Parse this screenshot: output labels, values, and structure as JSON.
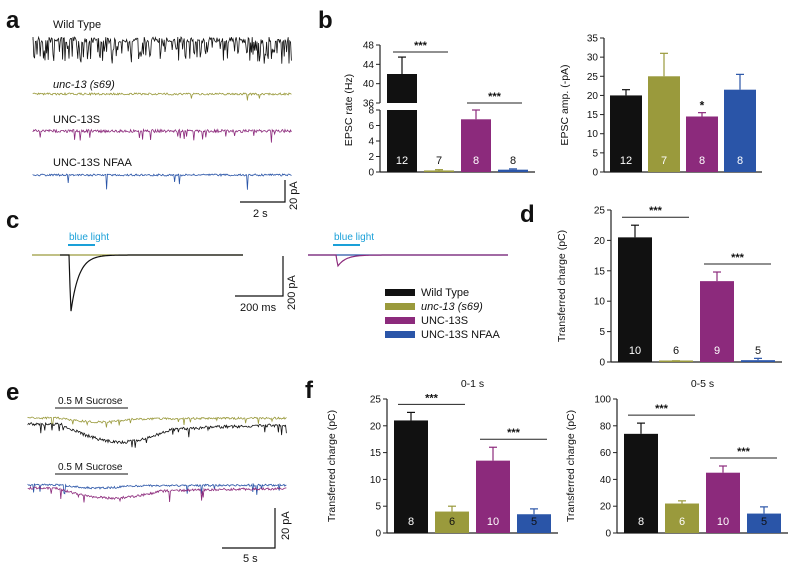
{
  "panels": {
    "a": "a",
    "b": "b",
    "c": "c",
    "d": "d",
    "e": "e",
    "f": "f"
  },
  "colors": {
    "wt": "#111111",
    "unc13": "#9a9a3c",
    "unc13s": "#8c2a7c",
    "nfaa": "#2a55a8",
    "light": "#1aa0d8",
    "axis": "#222222"
  },
  "traces": {
    "a": {
      "labels": [
        "Wild Type",
        "unc-13 (s69)",
        "UNC-13S",
        "UNC-13S NFAA"
      ],
      "scale_time": "2 s",
      "scale_current": "20 pA"
    },
    "c": {
      "stim_label": "blue light",
      "scale_time": "200 ms",
      "scale_current": "200 pA"
    },
    "e": {
      "stim_label": "0.5 M Sucrose",
      "scale_time": "5 s",
      "scale_current": "20 pA"
    }
  },
  "legend": {
    "items": [
      {
        "label": "Wild Type",
        "color": "#111111",
        "italic": false
      },
      {
        "label": "unc-13 (s69)",
        "color": "#9a9a3c",
        "italic": true
      },
      {
        "label": "UNC-13S",
        "color": "#8c2a7c",
        "italic": false
      },
      {
        "label": "UNC-13S NFAA",
        "color": "#2a55a8",
        "italic": false
      }
    ]
  },
  "chart_data": [
    {
      "id": "b-rate",
      "panel": "b",
      "type": "bar",
      "title": "",
      "ylabel": "EPSC rate (Hz)",
      "categories": [
        "Wild Type",
        "unc-13 (s69)",
        "UNC-13S",
        "UNC-13S NFAA"
      ],
      "values": [
        42,
        0.2,
        6.8,
        0.3
      ],
      "errors": [
        3.5,
        0.1,
        1.2,
        0.1
      ],
      "n": [
        "12",
        "7",
        "8",
        "8"
      ],
      "axis_break": {
        "low": [
          0,
          8
        ],
        "high": [
          36,
          48
        ]
      },
      "ticks_low": [
        "0",
        "2",
        "4",
        "6",
        "8"
      ],
      "ticks_high": [
        "36",
        "40",
        "44",
        "48"
      ],
      "sig": [
        {
          "from": 0,
          "to": 1,
          "label": "***"
        },
        {
          "from": 2,
          "to": 3,
          "label": "***"
        }
      ]
    },
    {
      "id": "b-amp",
      "panel": "b",
      "type": "bar",
      "title": "",
      "ylabel": "EPSC amp. (-pA)",
      "categories": [
        "Wild Type",
        "unc-13 (s69)",
        "UNC-13S",
        "UNC-13S NFAA"
      ],
      "values": [
        20,
        25,
        14.5,
        21.5
      ],
      "errors": [
        1.5,
        6,
        1,
        4
      ],
      "n": [
        "12",
        "7",
        "8",
        "8"
      ],
      "ylim": [
        0,
        35
      ],
      "ticks": [
        "0",
        "5",
        "10",
        "15",
        "20",
        "25",
        "30",
        "35"
      ],
      "stars": [
        {
          "index": 2,
          "label": "*"
        }
      ]
    },
    {
      "id": "d",
      "panel": "d",
      "type": "bar",
      "title": "",
      "ylabel": "Transferred charge (pC)",
      "categories": [
        "Wild Type",
        "unc-13 (s69)",
        "UNC-13S",
        "UNC-13S NFAA"
      ],
      "values": [
        20.5,
        0.1,
        13.3,
        0.3
      ],
      "errors": [
        2,
        0.1,
        1.5,
        0.3
      ],
      "n": [
        "10",
        "6",
        "9",
        "5"
      ],
      "ylim": [
        0,
        25
      ],
      "ticks": [
        "0",
        "5",
        "10",
        "15",
        "20",
        "25"
      ],
      "sig": [
        {
          "from": 0,
          "to": 1,
          "label": "***"
        },
        {
          "from": 2,
          "to": 3,
          "label": "***"
        }
      ]
    },
    {
      "id": "f1",
      "panel": "f",
      "type": "bar",
      "title": "0-1 s",
      "ylabel": "Transferred charge (pC)",
      "categories": [
        "Wild Type",
        "unc-13 (s69)",
        "UNC-13S",
        "UNC-13S NFAA"
      ],
      "values": [
        21,
        4,
        13.5,
        3.5
      ],
      "errors": [
        1.5,
        1,
        2.5,
        1
      ],
      "n": [
        "8",
        "6",
        "10",
        "5"
      ],
      "ylim": [
        0,
        25
      ],
      "ticks": [
        "0",
        "5",
        "10",
        "15",
        "20",
        "25"
      ],
      "sig": [
        {
          "from": 0,
          "to": 1,
          "label": "***"
        },
        {
          "from": 2,
          "to": 3,
          "label": "***"
        }
      ]
    },
    {
      "id": "f2",
      "panel": "f",
      "type": "bar",
      "title": "0-5 s",
      "ylabel": "Transferred charge (pC)",
      "categories": [
        "Wild Type",
        "unc-13 (s69)",
        "UNC-13S",
        "UNC-13S NFAA"
      ],
      "values": [
        74,
        22,
        45,
        14.5
      ],
      "errors": [
        8,
        2,
        5,
        5
      ],
      "n": [
        "8",
        "6",
        "10",
        "5"
      ],
      "ylim": [
        0,
        100
      ],
      "ticks": [
        "0",
        "20",
        "40",
        "60",
        "80",
        "100"
      ],
      "sig": [
        {
          "from": 0,
          "to": 1,
          "label": "***"
        },
        {
          "from": 2,
          "to": 3,
          "label": "***"
        }
      ]
    }
  ]
}
